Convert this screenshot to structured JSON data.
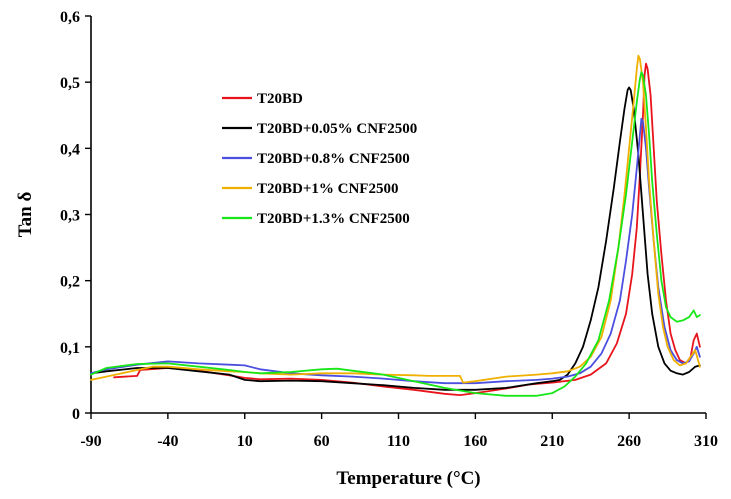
{
  "chart_data": {
    "type": "line",
    "title": "",
    "xlabel": "Temperature (°C)",
    "ylabel": "Tan δ",
    "xlim": [
      -90,
      310
    ],
    "ylim": [
      0,
      0.6
    ],
    "xticks": [
      -90,
      -40,
      10,
      60,
      110,
      160,
      210,
      260,
      310
    ],
    "xtick_labels": [
      "-90",
      "-40",
      "10",
      "60",
      "110",
      "160",
      "210",
      "260",
      "310"
    ],
    "yticks": [
      0,
      0.1,
      0.2,
      0.3,
      0.4,
      0.5,
      0.6
    ],
    "ytick_labels": [
      "0",
      "0,1",
      "0,2",
      "0,3",
      "0,4",
      "0,5",
      "0,6"
    ],
    "grid": false,
    "legend_position": "upper-left",
    "series": [
      {
        "name": "T20BD",
        "color": "#e8141c",
        "points": [
          [
            -75,
            0.054
          ],
          [
            -60,
            0.056
          ],
          [
            -58,
            0.065
          ],
          [
            -40,
            0.068
          ],
          [
            -20,
            0.064
          ],
          [
            0,
            0.057
          ],
          [
            10,
            0.053
          ],
          [
            20,
            0.051
          ],
          [
            40,
            0.052
          ],
          [
            60,
            0.05
          ],
          [
            80,
            0.046
          ],
          [
            100,
            0.04
          ],
          [
            120,
            0.035
          ],
          [
            140,
            0.029
          ],
          [
            150,
            0.027
          ],
          [
            160,
            0.03
          ],
          [
            180,
            0.037
          ],
          [
            195,
            0.043
          ],
          [
            210,
            0.046
          ],
          [
            225,
            0.05
          ],
          [
            235,
            0.058
          ],
          [
            245,
            0.075
          ],
          [
            252,
            0.105
          ],
          [
            258,
            0.15
          ],
          [
            262,
            0.21
          ],
          [
            265,
            0.28
          ],
          [
            267,
            0.36
          ],
          [
            269,
            0.45
          ],
          [
            270,
            0.51
          ],
          [
            271,
            0.528
          ],
          [
            272,
            0.52
          ],
          [
            274,
            0.48
          ],
          [
            276,
            0.4
          ],
          [
            278,
            0.32
          ],
          [
            281,
            0.24
          ],
          [
            284,
            0.17
          ],
          [
            287,
            0.12
          ],
          [
            290,
            0.095
          ],
          [
            293,
            0.08
          ],
          [
            297,
            0.075
          ],
          [
            300,
            0.085
          ],
          [
            302,
            0.11
          ],
          [
            304,
            0.12
          ],
          [
            306,
            0.1
          ]
        ]
      },
      {
        "name": "T20BD+0.05% CNF2500",
        "color": "#000000",
        "points": [
          [
            -90,
            0.06
          ],
          [
            -80,
            0.063
          ],
          [
            -60,
            0.068
          ],
          [
            -40,
            0.068
          ],
          [
            -20,
            0.063
          ],
          [
            0,
            0.058
          ],
          [
            10,
            0.05
          ],
          [
            20,
            0.048
          ],
          [
            40,
            0.049
          ],
          [
            60,
            0.048
          ],
          [
            80,
            0.045
          ],
          [
            100,
            0.042
          ],
          [
            120,
            0.038
          ],
          [
            140,
            0.035
          ],
          [
            160,
            0.035
          ],
          [
            180,
            0.038
          ],
          [
            200,
            0.045
          ],
          [
            210,
            0.048
          ],
          [
            215,
            0.05
          ],
          [
            220,
            0.058
          ],
          [
            225,
            0.075
          ],
          [
            230,
            0.1
          ],
          [
            235,
            0.14
          ],
          [
            240,
            0.19
          ],
          [
            245,
            0.26
          ],
          [
            250,
            0.34
          ],
          [
            254,
            0.41
          ],
          [
            257,
            0.46
          ],
          [
            259,
            0.488
          ],
          [
            260,
            0.492
          ],
          [
            261,
            0.488
          ],
          [
            263,
            0.46
          ],
          [
            266,
            0.39
          ],
          [
            269,
            0.3
          ],
          [
            272,
            0.21
          ],
          [
            275,
            0.15
          ],
          [
            279,
            0.1
          ],
          [
            283,
            0.075
          ],
          [
            287,
            0.064
          ],
          [
            291,
            0.06
          ],
          [
            295,
            0.058
          ],
          [
            299,
            0.062
          ],
          [
            303,
            0.07
          ],
          [
            306,
            0.072
          ]
        ]
      },
      {
        "name": "T20BD+0.8% CNF2500",
        "color": "#4b4fe0",
        "points": [
          [
            -90,
            0.06
          ],
          [
            -80,
            0.066
          ],
          [
            -60,
            0.073
          ],
          [
            -40,
            0.078
          ],
          [
            -20,
            0.075
          ],
          [
            0,
            0.073
          ],
          [
            10,
            0.072
          ],
          [
            20,
            0.066
          ],
          [
            40,
            0.06
          ],
          [
            60,
            0.057
          ],
          [
            80,
            0.055
          ],
          [
            100,
            0.052
          ],
          [
            120,
            0.048
          ],
          [
            140,
            0.045
          ],
          [
            160,
            0.045
          ],
          [
            180,
            0.048
          ],
          [
            200,
            0.05
          ],
          [
            210,
            0.052
          ],
          [
            220,
            0.055
          ],
          [
            228,
            0.06
          ],
          [
            235,
            0.07
          ],
          [
            242,
            0.09
          ],
          [
            248,
            0.12
          ],
          [
            254,
            0.17
          ],
          [
            258,
            0.23
          ],
          [
            262,
            0.3
          ],
          [
            265,
            0.37
          ],
          [
            267,
            0.42
          ],
          [
            268,
            0.445
          ],
          [
            269,
            0.44
          ],
          [
            271,
            0.4
          ],
          [
            273,
            0.34
          ],
          [
            276,
            0.26
          ],
          [
            279,
            0.19
          ],
          [
            283,
            0.13
          ],
          [
            287,
            0.095
          ],
          [
            291,
            0.08
          ],
          [
            295,
            0.075
          ],
          [
            299,
            0.078
          ],
          [
            302,
            0.09
          ],
          [
            304,
            0.1
          ],
          [
            306,
            0.085
          ]
        ]
      },
      {
        "name": "T20BD+1% CNF2500",
        "color": "#f0b000",
        "points": [
          [
            -90,
            0.05
          ],
          [
            -80,
            0.055
          ],
          [
            -60,
            0.065
          ],
          [
            -50,
            0.07
          ],
          [
            -40,
            0.07
          ],
          [
            -20,
            0.066
          ],
          [
            0,
            0.063
          ],
          [
            10,
            0.062
          ],
          [
            20,
            0.06
          ],
          [
            40,
            0.058
          ],
          [
            60,
            0.06
          ],
          [
            80,
            0.06
          ],
          [
            100,
            0.058
          ],
          [
            120,
            0.057
          ],
          [
            130,
            0.056
          ],
          [
            150,
            0.056
          ],
          [
            152,
            0.046
          ],
          [
            160,
            0.048
          ],
          [
            180,
            0.055
          ],
          [
            200,
            0.058
          ],
          [
            210,
            0.06
          ],
          [
            220,
            0.063
          ],
          [
            228,
            0.07
          ],
          [
            235,
            0.085
          ],
          [
            242,
            0.115
          ],
          [
            248,
            0.17
          ],
          [
            253,
            0.25
          ],
          [
            257,
            0.33
          ],
          [
            260,
            0.4
          ],
          [
            263,
            0.47
          ],
          [
            265,
            0.52
          ],
          [
            266,
            0.54
          ],
          [
            267,
            0.535
          ],
          [
            269,
            0.5
          ],
          [
            271,
            0.43
          ],
          [
            273,
            0.35
          ],
          [
            276,
            0.26
          ],
          [
            279,
            0.18
          ],
          [
            282,
            0.13
          ],
          [
            285,
            0.1
          ],
          [
            289,
            0.08
          ],
          [
            293,
            0.072
          ],
          [
            297,
            0.075
          ],
          [
            300,
            0.085
          ],
          [
            303,
            0.095
          ],
          [
            306,
            0.07
          ]
        ]
      },
      {
        "name": "T20BD+1.3% CNF2500",
        "color": "#17e617",
        "points": [
          [
            -90,
            0.058
          ],
          [
            -80,
            0.068
          ],
          [
            -60,
            0.074
          ],
          [
            -40,
            0.075
          ],
          [
            -20,
            0.07
          ],
          [
            0,
            0.065
          ],
          [
            10,
            0.062
          ],
          [
            20,
            0.06
          ],
          [
            40,
            0.062
          ],
          [
            60,
            0.066
          ],
          [
            70,
            0.067
          ],
          [
            80,
            0.064
          ],
          [
            100,
            0.058
          ],
          [
            120,
            0.048
          ],
          [
            140,
            0.038
          ],
          [
            160,
            0.03
          ],
          [
            180,
            0.026
          ],
          [
            200,
            0.026
          ],
          [
            210,
            0.03
          ],
          [
            218,
            0.04
          ],
          [
            225,
            0.055
          ],
          [
            232,
            0.075
          ],
          [
            240,
            0.11
          ],
          [
            247,
            0.17
          ],
          [
            253,
            0.25
          ],
          [
            258,
            0.33
          ],
          [
            262,
            0.41
          ],
          [
            265,
            0.47
          ],
          [
            267,
            0.505
          ],
          [
            268,
            0.515
          ],
          [
            269,
            0.51
          ],
          [
            271,
            0.48
          ],
          [
            273,
            0.42
          ],
          [
            275,
            0.35
          ],
          [
            278,
            0.27
          ],
          [
            281,
            0.2
          ],
          [
            284,
            0.16
          ],
          [
            287,
            0.145
          ],
          [
            291,
            0.138
          ],
          [
            295,
            0.14
          ],
          [
            299,
            0.145
          ],
          [
            302,
            0.155
          ],
          [
            304,
            0.145
          ],
          [
            306,
            0.148
          ]
        ]
      }
    ]
  }
}
